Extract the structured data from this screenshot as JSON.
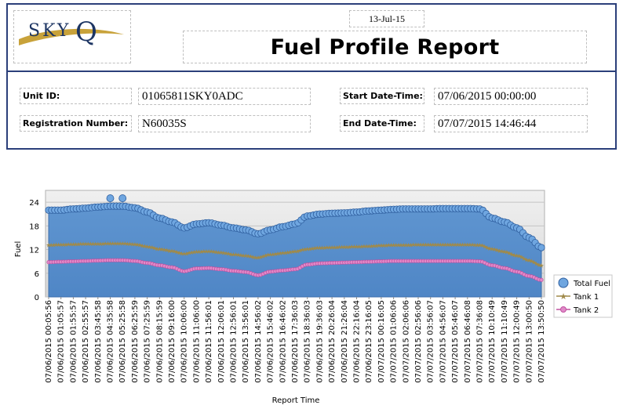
{
  "report": {
    "date": "13-Jul-15",
    "title": "Fuel Profile Report",
    "logo_text": "SKY",
    "logo_letter": "Q"
  },
  "details": {
    "unit_id_label": "Unit ID:",
    "unit_id": "01065811SKY0ADC",
    "registration_label": "Registration Number:",
    "registration": "N60035S",
    "start_label": "Start Date-Time:",
    "start": "07/06/2015 00:00:00",
    "end_label": "End Date-Time:",
    "end": "07/07/2015 14:46:44"
  },
  "colors": {
    "frame": "#2b3f7a",
    "total_fill": "#5f95d0",
    "total_marker": "#6fa6e0",
    "tank1": "#a08a4a",
    "tank2": "#c050a0"
  },
  "chart_data": {
    "type": "area",
    "xlabel": "Report Time",
    "ylabel": "Fuel",
    "ylim": [
      0,
      27
    ],
    "yticks": [
      0,
      6,
      12,
      18,
      24
    ],
    "grid": true,
    "legend": "right",
    "x_ticks": [
      "07/06/2015 00:05:56",
      "07/06/2015 01:05:57",
      "07/06/2015 01:55:57",
      "07/06/2015 02:55:57",
      "07/06/2015 03:45:58",
      "07/06/2015 04:35:58",
      "07/06/2015 05:25:58",
      "07/06/2015 06:25:59",
      "07/06/2015 07:25:59",
      "07/06/2015 08:15:59",
      "07/06/2015 09:16:00",
      "07/06/2015 10:06:00",
      "07/06/2015 11:06:00",
      "07/06/2015 11:56:01",
      "07/06/2015 12:06:01",
      "07/06/2015 12:56:01",
      "07/06/2015 13:56:01",
      "07/06/2015 14:56:02",
      "07/06/2015 15:46:02",
      "07/06/2015 16:46:02",
      "07/06/2015 17:36:03",
      "07/06/2015 18:36:03",
      "07/06/2015 19:36:03",
      "07/06/2015 20:26:04",
      "07/06/2015 21:26:04",
      "07/06/2015 22:16:04",
      "07/06/2015 23:16:05",
      "07/07/2015 00:16:05",
      "07/07/2015 01:06:06",
      "07/07/2015 02:06:06",
      "07/07/2015 02:56:06",
      "07/07/2015 03:56:07",
      "07/07/2015 04:56:07",
      "07/07/2015 05:46:07",
      "07/07/2015 06:46:08",
      "07/07/2015 07:36:08",
      "07/07/2015 10:10:49",
      "07/07/2015 11:10:49",
      "07/07/2015 12:00:49",
      "07/07/2015 13:00:50",
      "07/07/2015 13:50:50"
    ],
    "series": [
      {
        "name": "Total Fuel",
        "values": [
          22,
          22,
          22.3,
          22.5,
          22.8,
          23,
          23,
          22.6,
          21.5,
          20,
          19,
          17.5,
          18.5,
          18.8,
          18.2,
          17.5,
          17,
          16,
          17,
          17.8,
          18.5,
          20.5,
          21,
          21.2,
          21.3,
          21.5,
          21.8,
          22,
          22.2,
          22.3,
          22.3,
          22.3,
          22.4,
          22.4,
          22.4,
          22.3,
          20,
          19,
          17.5,
          15,
          12.5
        ]
      },
      {
        "name": "Tank 1",
        "values": [
          13.2,
          13.3,
          13.4,
          13.5,
          13.5,
          13.6,
          13.6,
          13.4,
          12.8,
          12.2,
          11.7,
          11,
          11.5,
          11.6,
          11.3,
          10.8,
          10.5,
          10,
          10.8,
          11.2,
          11.6,
          12.2,
          12.5,
          12.6,
          12.7,
          12.8,
          12.9,
          13.1,
          13.2,
          13.2,
          13.3,
          13.3,
          13.3,
          13.3,
          13.3,
          13.2,
          12.2,
          11.5,
          10.5,
          9.3,
          8
        ]
      },
      {
        "name": "Tank 2",
        "values": [
          8.8,
          8.9,
          9,
          9.1,
          9.2,
          9.3,
          9.3,
          9.1,
          8.6,
          8,
          7.5,
          6.5,
          7.2,
          7.3,
          7,
          6.6,
          6.3,
          5.5,
          6.4,
          6.7,
          7,
          8.2,
          8.5,
          8.6,
          8.7,
          8.8,
          8.9,
          9,
          9.1,
          9.1,
          9.1,
          9.1,
          9.1,
          9.1,
          9.1,
          9,
          8,
          7.3,
          6.4,
          5.3,
          4.3
        ]
      }
    ],
    "outliers": [
      {
        "series": "Total Fuel",
        "category": "07/06/2015 04:35:58",
        "value": 25
      },
      {
        "series": "Total Fuel",
        "category": "07/06/2015 05:25:58",
        "value": 25
      }
    ]
  }
}
